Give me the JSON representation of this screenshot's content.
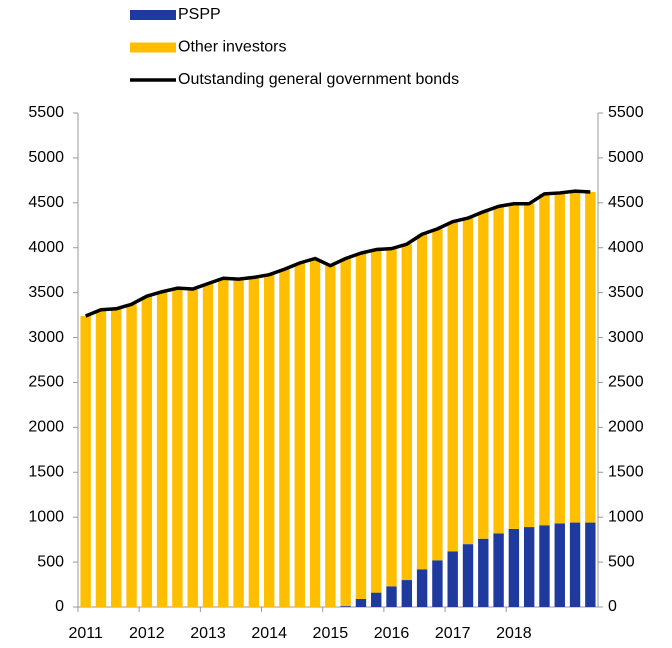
{
  "chart_data": {
    "type": "bar",
    "stacked": true,
    "categories": [
      "2011",
      null,
      null,
      null,
      "2012",
      null,
      null,
      null,
      "2013",
      null,
      null,
      null,
      "2014",
      null,
      null,
      null,
      "2015",
      null,
      null,
      null,
      "2016",
      null,
      null,
      null,
      "2017",
      null,
      null,
      null,
      "2018",
      null,
      null,
      null,
      null,
      null
    ],
    "series": [
      {
        "name": "PSPP",
        "type": "bar",
        "color": "#1f3a9e",
        "values": [
          0,
          0,
          0,
          0,
          0,
          0,
          0,
          0,
          0,
          0,
          0,
          0,
          0,
          0,
          0,
          0,
          0,
          10,
          90,
          160,
          230,
          300,
          420,
          520,
          620,
          700,
          760,
          820,
          870,
          890,
          910,
          930,
          940,
          940
        ]
      },
      {
        "name": "Other investors",
        "type": "bar",
        "color": "#ffbf00",
        "values": [
          3240,
          3310,
          3320,
          3370,
          3460,
          3510,
          3550,
          3540,
          3600,
          3660,
          3650,
          3670,
          3700,
          3760,
          3830,
          3880,
          3800,
          3870,
          3850,
          3820,
          3760,
          3740,
          3730,
          3690,
          3670,
          3630,
          3640,
          3640,
          3620,
          3600,
          3690,
          3680,
          3690,
          3680
        ]
      },
      {
        "name": "Outstanding general government bonds",
        "type": "line",
        "color": "#000000",
        "values": [
          3240,
          3310,
          3320,
          3370,
          3460,
          3510,
          3550,
          3540,
          3600,
          3660,
          3650,
          3670,
          3700,
          3760,
          3830,
          3880,
          3800,
          3880,
          3940,
          3980,
          3990,
          4040,
          4150,
          4210,
          4290,
          4330,
          4400,
          4460,
          4490,
          4490,
          4600,
          4610,
          4630,
          4620
        ]
      }
    ],
    "ylim": [
      0,
      5500
    ],
    "yticks": [
      0,
      500,
      1000,
      1500,
      2000,
      2500,
      3000,
      3500,
      4000,
      4500,
      5000,
      5500
    ],
    "y2lim": [
      0,
      5500
    ],
    "y2ticks": [
      0,
      500,
      1000,
      1500,
      2000,
      2500,
      3000,
      3500,
      4000,
      4500,
      5000,
      5500
    ],
    "legend": "top"
  }
}
